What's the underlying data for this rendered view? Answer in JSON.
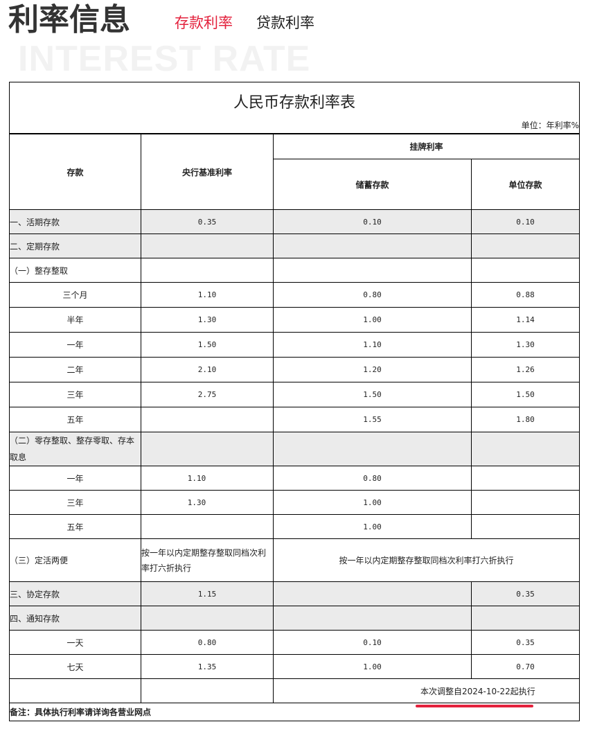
{
  "header": {
    "title": "利率信息",
    "watermark": "INTEREST RATE",
    "tabs": [
      {
        "label": "存款利率",
        "active": true
      },
      {
        "label": "贷款利率",
        "active": false
      }
    ]
  },
  "colors": {
    "accent": "#e3213c",
    "row_gray": "#ebebeb"
  },
  "table": {
    "title": "人民币存款利率表",
    "unit": "单位：年利率%",
    "headers": {
      "deposit": "存款",
      "base_rate": "央行基准利率",
      "listed_rate": "挂牌利率",
      "savings": "储蓄存款",
      "corporate": "单位存款"
    },
    "rows": [
      {
        "cells": [
          "一、活期存款",
          "0.35",
          "0.10",
          "0.10"
        ],
        "gray": true,
        "left": true
      },
      {
        "cells": [
          "二、定期存款",
          "",
          "",
          ""
        ],
        "gray": true,
        "left": true
      },
      {
        "cells": [
          "（一）整存整取",
          "",
          "",
          ""
        ],
        "left": true
      },
      {
        "cells": [
          "三个月",
          "1.10",
          "0.80",
          "0.88"
        ]
      },
      {
        "cells": [
          "半年",
          "1.30",
          "1.00",
          "1.14"
        ]
      },
      {
        "cells": [
          "一年",
          "1.50",
          "1.10",
          "1.30"
        ]
      },
      {
        "cells": [
          "二年",
          "2.10",
          "1.20",
          "1.26"
        ]
      },
      {
        "cells": [
          "三年",
          "2.75",
          "1.50",
          "1.50"
        ]
      },
      {
        "cells": [
          "五年",
          "",
          "1.55",
          "1.80"
        ]
      },
      {
        "cells": [
          "（二）零存整取、整存零取、存本取息",
          "",
          "",
          ""
        ],
        "gray": true,
        "left": true,
        "tall": true
      },
      {
        "cells": [
          "一年",
          "1.10",
          "0.80",
          ""
        ],
        "shift": true
      },
      {
        "cells": [
          "三年",
          "1.30",
          "1.00",
          ""
        ],
        "shift": true
      },
      {
        "cells": [
          "五年",
          "",
          "1.00",
          ""
        ]
      },
      {
        "cells": [
          "（三）定活两便",
          "按一年以内定期整存整取同档次利率打六折执行",
          "按一年以内定期整存整取同档次利率打六折执行"
        ],
        "merged": true,
        "left": true
      },
      {
        "cells": [
          "三、协定存款",
          "1.15",
          "",
          "0.35"
        ],
        "gray": true,
        "left": true
      },
      {
        "cells": [
          "四、通知存款",
          "",
          "",
          ""
        ],
        "gray": true,
        "left": true
      },
      {
        "cells": [
          "一天",
          "0.80",
          "0.10",
          "0.35"
        ]
      },
      {
        "cells": [
          "七天",
          "1.35",
          "1.00",
          "0.70"
        ]
      }
    ],
    "effective_note": "本次调整自2024-10-22起执行",
    "remark": "备注：具体执行利率请详询各营业网点"
  }
}
